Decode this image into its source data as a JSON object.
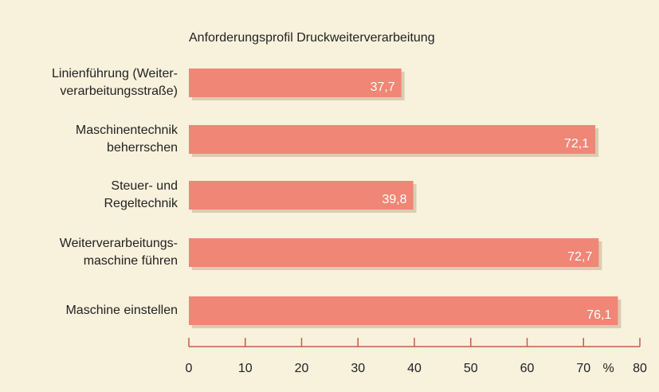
{
  "chart_data": {
    "type": "bar",
    "orientation": "horizontal",
    "title": "Anforderungsprofil Druckweiterverarbeitung",
    "categories": [
      "Linienführung (Weiter-\nverarbeitungsstraße)",
      "Maschinentechnik\nbeherrschen",
      "Steuer- und\nRegeltechnik",
      "Weiterverarbeitungs-\nmaschine führen",
      "Maschine einstellen"
    ],
    "values": [
      37.7,
      72.1,
      39.8,
      72.7,
      76.1
    ],
    "value_labels": [
      "37,7",
      "72,1",
      "39,8",
      "72,7",
      "76,1"
    ],
    "color": "#f08676",
    "x_label": "%",
    "xlim": [
      0,
      80
    ],
    "xticks": [
      0,
      10,
      20,
      30,
      40,
      50,
      60,
      70,
      80
    ]
  }
}
